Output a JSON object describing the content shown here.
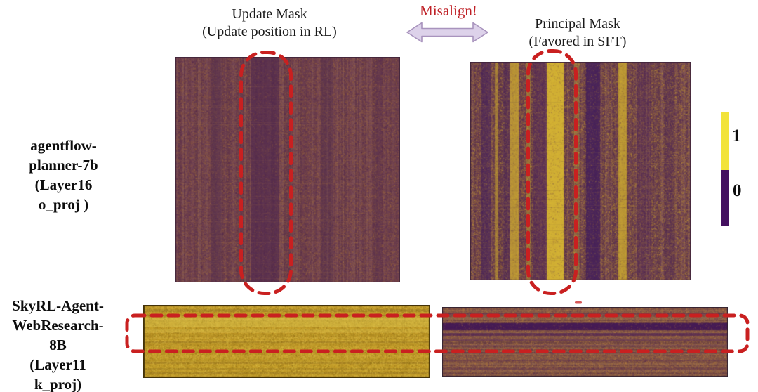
{
  "figure": {
    "titles": {
      "update": {
        "line1": "Update Mask",
        "line2": "(Update position in RL)"
      },
      "principal": {
        "line1": "Principal Mask",
        "line2": "(Favored in SFT)"
      },
      "misalign": "Misalign!"
    },
    "row_labels": {
      "top": [
        "agentflow-",
        "planner-7b",
        "(Layer16",
        "o_proj )"
      ],
      "bottom": [
        "SkyRL-Agent-",
        "WebResearch-",
        "8B",
        "(Layer11",
        "k_proj)"
      ]
    },
    "colorbar": {
      "top_label": "1",
      "bottom_label": "0",
      "top_color": "#f2e33a",
      "bottom_color": "#441060"
    },
    "colors": {
      "dash_red": "#c92020",
      "misalign_red": "#bf2026",
      "arrow_fill": "#ddd2ea",
      "arrow_stroke": "#a893bd",
      "text": "#111111"
    }
  },
  "chart_data": {
    "type": "heatmap",
    "title": "Update Mask vs Principal Mask misalignment",
    "value_legend": {
      "1": "yellow",
      "0": "dark purple"
    },
    "colorbar_ticks": [
      1,
      0
    ],
    "rows": [
      {
        "model": "agentflow-planner-7b (Layer16 o_proj )",
        "left_panel": "update_top",
        "right_panel": "principal_top"
      },
      {
        "model": "SkyRL-Agent-WebResearch-8B (Layer11 k_proj)",
        "left_panel": "update_bottom",
        "right_panel": "principal_bottom"
      }
    ],
    "annotations": {
      "misalign_label": "Misalign!",
      "dashed_highlights": [
        {
          "target": "update_top",
          "shape": "vertical-stadium",
          "region_x": [
            0.29,
            0.51
          ]
        },
        {
          "target": "principal_top",
          "shape": "vertical-stadium",
          "region_x": [
            0.26,
            0.48
          ]
        },
        {
          "target": "bottom_row_both",
          "shape": "wide-rounded-rect",
          "region_y": [
            0.14,
            0.63
          ]
        }
      ]
    },
    "panels": {
      "update_top": {
        "mask": "Update Mask (RL update positions)",
        "dominant_value": 0,
        "base": "#6f4150",
        "variation": 0.13,
        "stripe_dir": "v",
        "noise": {
          "colors": [
            "#a66f3e",
            "#8f5c3e",
            "#53294c",
            "#6b3a52"
          ],
          "density": 0.55
        },
        "stripes": [
          {
            "p": 0.16,
            "w": 0.045,
            "c": "#56304e",
            "a": 0.5
          },
          {
            "p": 0.335,
            "w": 0.125,
            "c": "#50284e",
            "a": 0.65
          },
          {
            "p": 0.648,
            "w": 0.055,
            "c": "#56304e",
            "a": 0.45
          },
          {
            "p": 0.895,
            "w": 0.025,
            "c": "#56304e",
            "a": 0.3
          }
        ],
        "cross": {
          "dir": "h",
          "step": 3,
          "prob": 0.5,
          "colors": [
            "#3c1c40",
            "#c08a50"
          ],
          "aMin": 0.03,
          "aMax": 0.1
        },
        "noise2": 0.12,
        "border": {
          "c": "#40243a",
          "w": 1
        }
      },
      "principal_top": {
        "mask": "Principal Mask (favored in SFT)",
        "dominant_value": 0,
        "base": "#6a3e52",
        "variation": 0.16,
        "stripe_dir": "v",
        "noise": {
          "colors": [
            "#b07838",
            "#c9a232",
            "#4c2450",
            "#8a5a40"
          ],
          "density": 0.6
        },
        "stripes": [
          {
            "p": 0.05,
            "w": 0.042,
            "c": "#46225a",
            "a": 0.65
          },
          {
            "p": 0.112,
            "w": 0.014,
            "c": "#c9a730",
            "a": 0.6
          },
          {
            "p": 0.15,
            "w": 0.03,
            "c": "#46225a",
            "a": 0.45
          },
          {
            "p": 0.18,
            "w": 0.04,
            "c": "#cfac30",
            "a": 0.75
          },
          {
            "p": 0.255,
            "w": 0.018,
            "c": "#c9a730",
            "a": 0.5
          },
          {
            "p": 0.285,
            "w": 0.062,
            "c": "#50265a",
            "a": 0.55
          },
          {
            "p": 0.347,
            "w": 0.078,
            "c": "#d9b932",
            "a": 0.92
          },
          {
            "p": 0.47,
            "w": 0.025,
            "c": "#c9a730",
            "a": 0.35
          },
          {
            "p": 0.525,
            "w": 0.065,
            "c": "#431f5c",
            "a": 0.85
          },
          {
            "p": 0.672,
            "w": 0.038,
            "c": "#cdab30",
            "a": 0.8
          },
          {
            "p": 0.755,
            "w": 0.065,
            "c": "#50265a",
            "a": 0.4
          },
          {
            "p": 0.88,
            "w": 0.045,
            "c": "#50265a",
            "a": 0.28
          }
        ],
        "cross": {
          "dir": "h",
          "step": 3,
          "prob": 0.5,
          "colors": [
            "#3c1c40",
            "#caa040"
          ],
          "aMin": 0.03,
          "aMax": 0.1
        },
        "noise2": 0.15,
        "border": {
          "c": "#40243a",
          "w": 1
        }
      },
      "update_bottom": {
        "mask": "Update Mask (RL update positions)",
        "dominant_value": 1,
        "base": "#c39b25",
        "variation": 0.17,
        "stripe_dir": "h",
        "noise": {
          "colors": [
            "#9a7a1c",
            "#e0c54e",
            "#8a6a16",
            "#d4b53c"
          ],
          "density": 0.55
        },
        "stripes": [
          {
            "p": 0.17,
            "w": 0.13,
            "c": "#dcc24c",
            "a": 0.55
          },
          {
            "p": 0.33,
            "w": 0.05,
            "c": "#dcc24c",
            "a": 0.35
          },
          {
            "p": 0.52,
            "w": 0.04,
            "c": "#a8861e",
            "a": 0.3
          },
          {
            "p": 0.74,
            "w": 0.05,
            "c": "#a8861e",
            "a": 0.25
          }
        ],
        "cross": {
          "dir": "v",
          "step": 3,
          "prob": 0.4,
          "colors": [
            "#8a6a16",
            "#e6cc58"
          ],
          "aMin": 0.04,
          "aMax": 0.12
        },
        "noise2": 0.12,
        "border": {
          "c": "#433208",
          "w": 2
        }
      },
      "principal_bottom": {
        "mask": "Principal Mask (favored in SFT)",
        "dominant_value": 0,
        "base": "#7c5045",
        "variation": 0.14,
        "stripe_dir": "h",
        "noise": {
          "colors": [
            "#b07c3e",
            "#9a6438",
            "#5a2c50",
            "#c08848"
          ],
          "density": 0.5
        },
        "stripes": [
          {
            "p": 0.085,
            "w": 0.035,
            "c": "#5a2a54",
            "a": 0.55
          },
          {
            "p": 0.23,
            "w": 0.105,
            "c": "#3c1256",
            "a": 0.88
          },
          {
            "p": 0.375,
            "w": 0.038,
            "c": "#4c2056",
            "a": 0.7
          },
          {
            "p": 0.455,
            "w": 0.03,
            "c": "#552858",
            "a": 0.55
          },
          {
            "p": 0.545,
            "w": 0.022,
            "c": "#552858",
            "a": 0.45
          },
          {
            "p": 0.65,
            "w": 0.022,
            "c": "#552858",
            "a": 0.4
          },
          {
            "p": 0.76,
            "w": 0.02,
            "c": "#552858",
            "a": 0.35
          },
          {
            "p": 0.875,
            "w": 0.02,
            "c": "#552858",
            "a": 0.3
          }
        ],
        "cross": {
          "dir": "h",
          "step": 2,
          "prob": 0.5,
          "colors": [
            "#5a2c56",
            "#c08848"
          ],
          "aMin": 0.05,
          "aMax": 0.18
        },
        "noise2": 0.1,
        "border": {
          "c": "#2f2030",
          "w": 1
        }
      }
    }
  }
}
